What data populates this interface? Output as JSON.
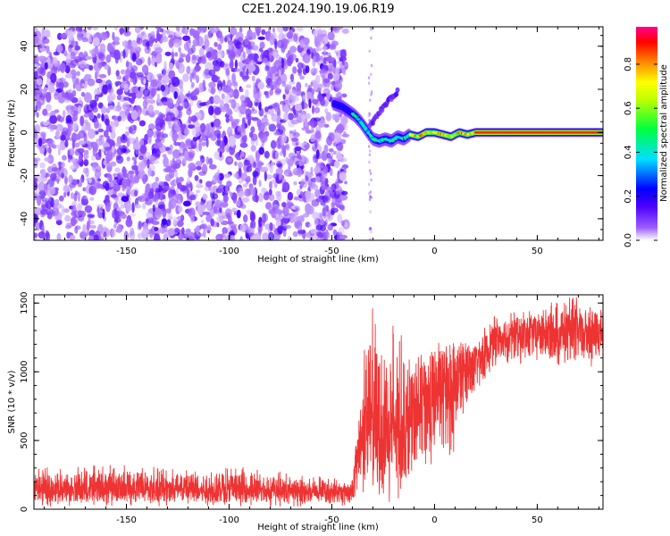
{
  "figure": {
    "title": "C2E1.2024.190.19.06.R19"
  },
  "chart_data": [
    {
      "type": "heatmap",
      "title": "",
      "xlabel": "Height of straight line (km)",
      "ylabel": "Frequency (Hz)",
      "xlim": [
        -195,
        82
      ],
      "ylim": [
        -50,
        49
      ],
      "xticks": [
        -150,
        -100,
        -50,
        0,
        50
      ],
      "yticks": [
        -40,
        -20,
        0,
        20,
        40
      ],
      "colorbar": {
        "label": "Normalized spectral amplitude",
        "range": [
          0,
          0.97
        ],
        "ticks": [
          0.0,
          0.2,
          0.4,
          0.6,
          0.8
        ],
        "colormap": [
          "#ffffff",
          "#7b00ff",
          "#0000ff",
          "#00ffff",
          "#00ff00",
          "#ffff00",
          "#ff8000",
          "#ff0000",
          "#ff00a0"
        ]
      },
      "regions": [
        {
          "name": "noise",
          "x_range": [
            -195,
            -47
          ],
          "freq_range": [
            -50,
            49
          ],
          "amplitude": [
            0.02,
            0.12
          ]
        },
        {
          "name": "transition",
          "x_range": [
            -48,
            -10
          ],
          "amplitude": [
            0.1,
            0.5
          ]
        },
        {
          "name": "stable line",
          "x_range": [
            -10,
            82
          ],
          "freq": 0,
          "amplitude": [
            0.8,
            0.97
          ]
        }
      ],
      "ridge": [
        {
          "x": -48,
          "freq": 13
        },
        {
          "x": -45,
          "freq": 12
        },
        {
          "x": -42,
          "freq": 10
        },
        {
          "x": -39,
          "freq": 8
        },
        {
          "x": -36,
          "freq": 5
        },
        {
          "x": -33,
          "freq": 1
        },
        {
          "x": -30,
          "freq": -3
        },
        {
          "x": -27,
          "freq": -4
        },
        {
          "x": -24,
          "freq": -3
        },
        {
          "x": -21,
          "freq": -4
        },
        {
          "x": -18,
          "freq": -2
        },
        {
          "x": -15,
          "freq": -3
        },
        {
          "x": -12,
          "freq": -1
        },
        {
          "x": -8,
          "freq": -2
        },
        {
          "x": -4,
          "freq": 0
        },
        {
          "x": 0,
          "freq": 0
        },
        {
          "x": 4,
          "freq": -1
        },
        {
          "x": 8,
          "freq": -2
        },
        {
          "x": 12,
          "freq": 0
        },
        {
          "x": 16,
          "freq": -1
        },
        {
          "x": 20,
          "freq": 0
        },
        {
          "x": 82,
          "freq": 0
        }
      ],
      "secondary_ridge": [
        {
          "x": -33,
          "freq": 2
        },
        {
          "x": -30,
          "freq": 5
        },
        {
          "x": -27,
          "freq": 9
        },
        {
          "x": -24,
          "freq": 13
        },
        {
          "x": -21,
          "freq": 16
        },
        {
          "x": -18,
          "freq": 19
        }
      ]
    },
    {
      "type": "line",
      "title": "",
      "xlabel": "Height of straight line (km)",
      "ylabel": "SNR (10 * v/v)",
      "xlim": [
        -195,
        82
      ],
      "ylim": [
        0,
        1560
      ],
      "xticks": [
        -150,
        -100,
        -50,
        0,
        50
      ],
      "yticks": [
        0,
        500,
        1000,
        1500
      ],
      "color": "#ee3333",
      "series": [
        {
          "values_envelope": [
            {
              "x": -195,
              "min": 20,
              "mean": 130,
              "max": 300
            },
            {
              "x": -150,
              "min": 20,
              "mean": 130,
              "max": 330
            },
            {
              "x": -100,
              "min": 20,
              "mean": 120,
              "max": 320
            },
            {
              "x": -60,
              "min": 20,
              "mean": 115,
              "max": 250
            },
            {
              "x": -40,
              "min": 20,
              "mean": 110,
              "max": 230
            },
            {
              "x": -37,
              "min": 150,
              "mean": 400,
              "max": 800
            },
            {
              "x": -33,
              "min": 50,
              "mean": 600,
              "max": 1400
            },
            {
              "x": -30,
              "min": 20,
              "mean": 500,
              "max": 1500
            },
            {
              "x": -25,
              "min": 20,
              "mean": 450,
              "max": 1400
            },
            {
              "x": -20,
              "min": 20,
              "mean": 500,
              "max": 1400
            },
            {
              "x": -15,
              "min": 60,
              "mean": 550,
              "max": 1250
            },
            {
              "x": -10,
              "min": 150,
              "mean": 650,
              "max": 1100
            },
            {
              "x": 0,
              "min": 300,
              "mean": 800,
              "max": 1300
            },
            {
              "x": 10,
              "min": 400,
              "mean": 900,
              "max": 1250
            },
            {
              "x": 20,
              "min": 850,
              "mean": 1050,
              "max": 1250
            },
            {
              "x": 30,
              "min": 1050,
              "mean": 1230,
              "max": 1420
            },
            {
              "x": 50,
              "min": 1050,
              "mean": 1260,
              "max": 1480
            },
            {
              "x": 70,
              "min": 1000,
              "mean": 1250,
              "max": 1560
            },
            {
              "x": 82,
              "min": 1050,
              "mean": 1280,
              "max": 1450
            }
          ]
        }
      ]
    }
  ]
}
